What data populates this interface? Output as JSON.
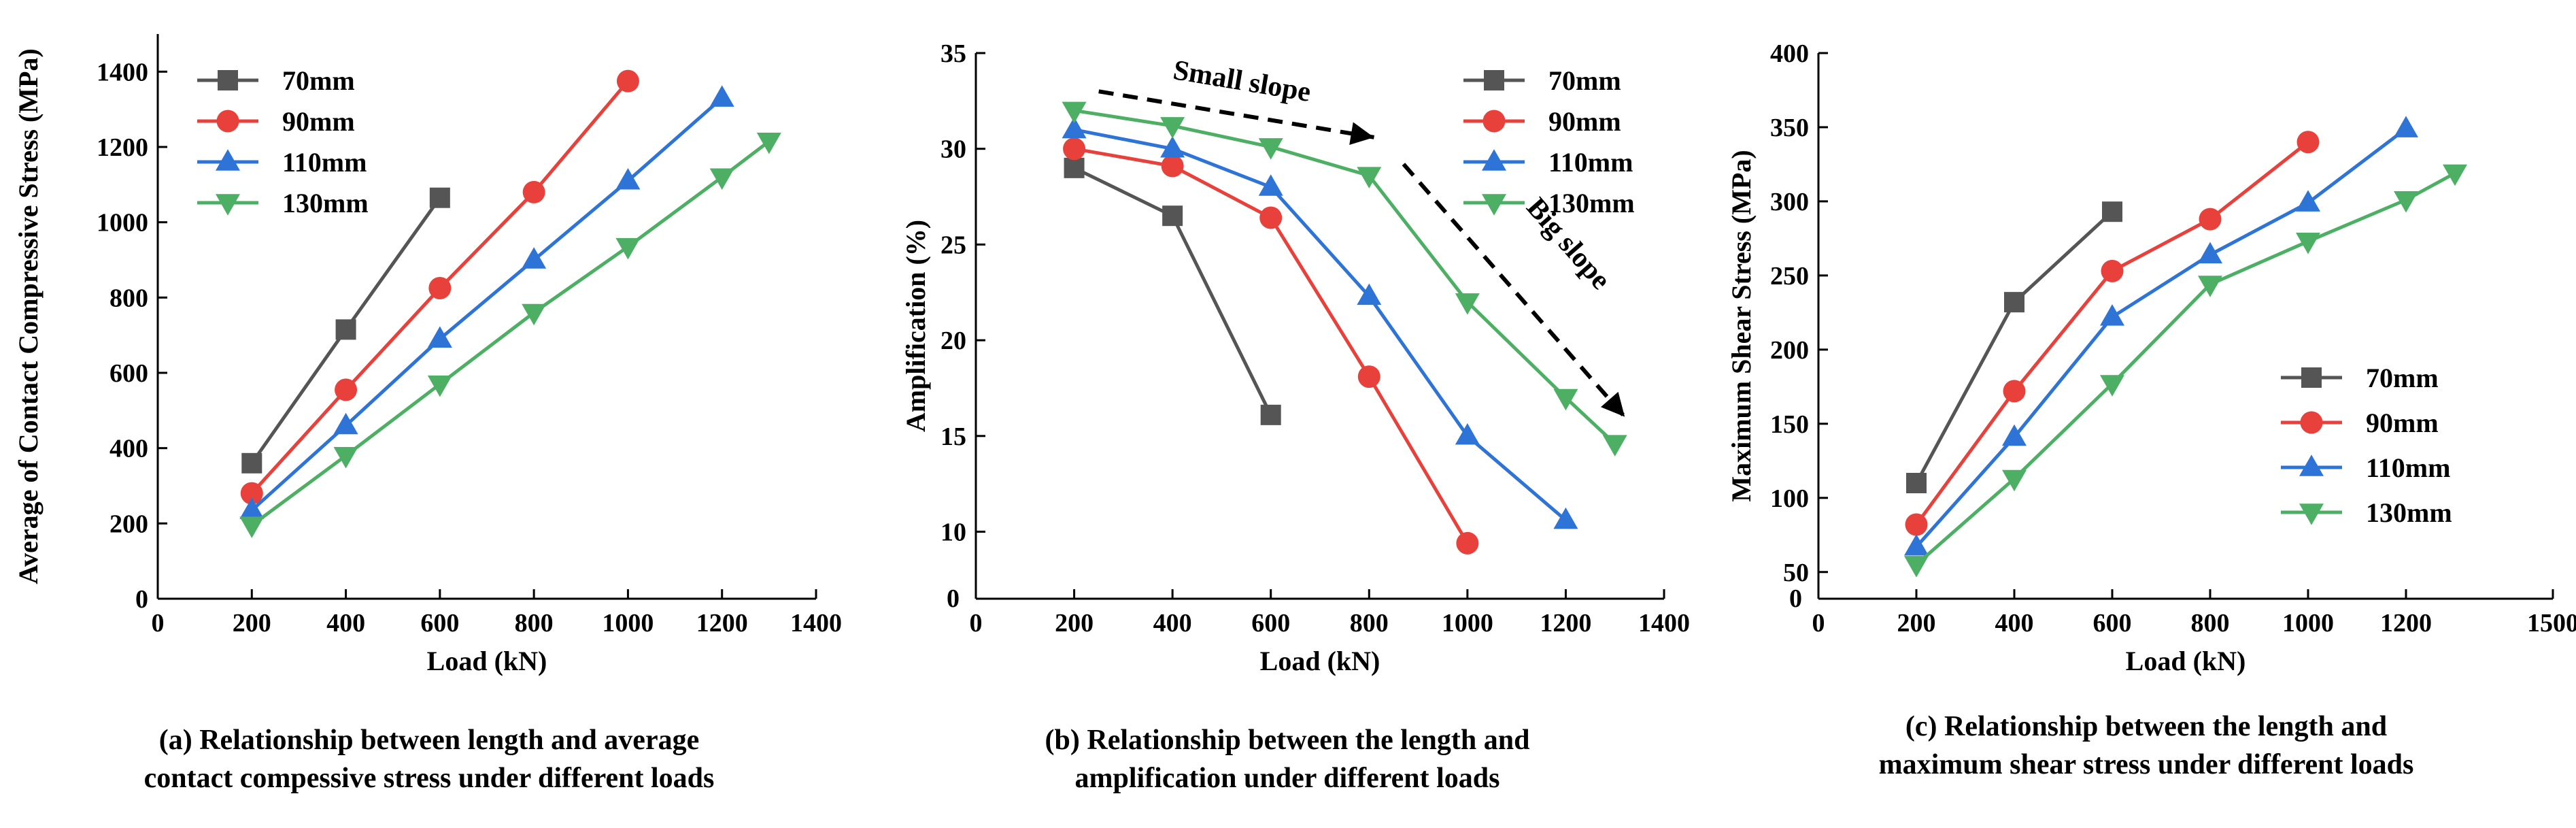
{
  "chart_data": [
    {
      "type": "line",
      "id": "a",
      "title": "",
      "xlabel": "Load (kN)",
      "ylabel": "Average  of Contact Compressive Stress (MPa)",
      "xlim": [
        0,
        1400
      ],
      "ylim": [
        0,
        1500
      ],
      "xticks": [
        0,
        200,
        400,
        600,
        800,
        1000,
        1200,
        1400
      ],
      "yticks": [
        0,
        200,
        400,
        600,
        800,
        1000,
        1200,
        1400
      ],
      "legend_position": "top-left",
      "series": [
        {
          "name": "70mm",
          "color": "#555555",
          "marker": "square",
          "x": [
            200,
            400,
            600
          ],
          "values": [
            360,
            715,
            1065
          ]
        },
        {
          "name": "90mm",
          "color": "#e8413c",
          "marker": "circle",
          "x": [
            200,
            400,
            600,
            800,
            1000
          ],
          "values": [
            280,
            555,
            825,
            1080,
            1375
          ]
        },
        {
          "name": "110mm",
          "color": "#2e74d6",
          "marker": "triangle-up",
          "x": [
            200,
            400,
            600,
            800,
            1000,
            1200
          ],
          "values": [
            235,
            460,
            690,
            900,
            1110,
            1330
          ]
        },
        {
          "name": "130mm",
          "color": "#4caf64",
          "marker": "triangle-down",
          "x": [
            200,
            400,
            600,
            800,
            1000,
            1200,
            1300
          ],
          "values": [
            195,
            380,
            570,
            760,
            935,
            1120,
            1215
          ]
        }
      ],
      "annotations": [],
      "caption_lines": [
        "(a)  Relationship between length and average",
        "contact compessive stress under different loads"
      ]
    },
    {
      "type": "line",
      "id": "b",
      "title": "",
      "xlabel": "Load (kN)",
      "ylabel": "Amplification (%)",
      "xlim": [
        0,
        1400
      ],
      "ylim": [
        6.5,
        35
      ],
      "xticks": [
        0,
        200,
        400,
        600,
        800,
        1000,
        1200,
        1400
      ],
      "yticks": [
        10,
        15,
        20,
        25,
        30,
        35
      ],
      "y_origin_label": "0",
      "legend_position": "top-right",
      "series": [
        {
          "name": "70mm",
          "color": "#555555",
          "marker": "square",
          "x": [
            200,
            400,
            600
          ],
          "values": [
            29.0,
            26.5,
            16.1
          ]
        },
        {
          "name": "90mm",
          "color": "#e8413c",
          "marker": "circle",
          "x": [
            200,
            400,
            600,
            800,
            1000
          ],
          "values": [
            30.0,
            29.1,
            26.4,
            18.1,
            9.4
          ]
        },
        {
          "name": "110mm",
          "color": "#2e74d6",
          "marker": "triangle-up",
          "x": [
            200,
            400,
            600,
            800,
            1000,
            1200
          ],
          "values": [
            31.0,
            30.0,
            28.0,
            22.3,
            15.0,
            10.6
          ]
        },
        {
          "name": "130mm",
          "color": "#4caf64",
          "marker": "triangle-down",
          "x": [
            200,
            400,
            600,
            800,
            1000,
            1200,
            1300
          ],
          "values": [
            32.0,
            31.2,
            30.1,
            28.6,
            22.0,
            17.0,
            14.6
          ]
        }
      ],
      "annotations": [
        {
          "text": "Small slope",
          "from": [
            250,
            33.0
          ],
          "to": [
            810,
            30.6
          ]
        },
        {
          "text": "Big slope",
          "from": [
            870,
            29.2
          ],
          "to": [
            1320,
            16.0
          ]
        }
      ],
      "caption_lines": [
        "(b)  Relationship between the length and",
        "amplification under different loads"
      ]
    },
    {
      "type": "line",
      "id": "c",
      "title": "",
      "xlabel": "Load (kN)",
      "ylabel": "Maximum Shear Stress (MPa)",
      "xlim": [
        0,
        1500
      ],
      "ylim": [
        32,
        400
      ],
      "xticks": [
        0,
        200,
        400,
        600,
        800,
        1000,
        1200,
        1500
      ],
      "yticks": [
        50,
        100,
        150,
        200,
        250,
        300,
        350,
        400
      ],
      "y_origin_label": "0",
      "legend_position": "center-right",
      "series": [
        {
          "name": "70mm",
          "color": "#555555",
          "marker": "square",
          "x": [
            200,
            400,
            600
          ],
          "values": [
            110,
            232,
            293
          ]
        },
        {
          "name": "90mm",
          "color": "#e8413c",
          "marker": "circle",
          "x": [
            200,
            400,
            600,
            800,
            1000
          ],
          "values": [
            82,
            172,
            253,
            288,
            340
          ]
        },
        {
          "name": "110mm",
          "color": "#2e74d6",
          "marker": "triangle-up",
          "x": [
            200,
            400,
            600,
            800,
            1000,
            1200
          ],
          "values": [
            67,
            141,
            222,
            264,
            299,
            349
          ]
        },
        {
          "name": "130mm",
          "color": "#4caf64",
          "marker": "triangle-down",
          "x": [
            200,
            400,
            600,
            800,
            1000,
            1200,
            1300
          ],
          "values": [
            55,
            113,
            177,
            244,
            273,
            301,
            319
          ]
        }
      ],
      "annotations": [],
      "caption_lines": [
        "(c)  Relationship between the length and",
        "maximum shear stress under different loads"
      ]
    }
  ]
}
